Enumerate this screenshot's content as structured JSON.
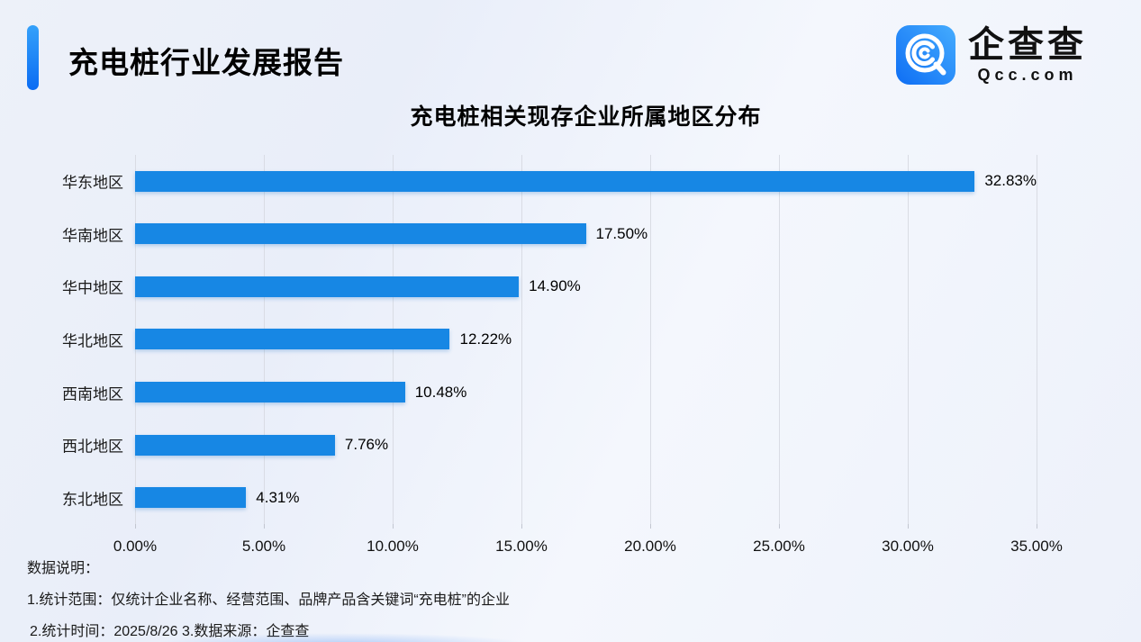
{
  "header": {
    "title": "充电桩行业发展报告"
  },
  "logo": {
    "icon": "qcc-magnifier-icon",
    "name_cn": "企查查",
    "name_en": "Qcc.com"
  },
  "chart_data": {
    "type": "bar",
    "orientation": "horizontal",
    "title": "充电桩相关现存企业所属地区分布",
    "categories": [
      "华东地区",
      "华南地区",
      "华中地区",
      "华北地区",
      "西南地区",
      "西北地区",
      "东北地区"
    ],
    "values": [
      32.83,
      17.5,
      14.9,
      12.22,
      10.48,
      7.76,
      4.31
    ],
    "value_labels": [
      "32.83%",
      "17.50%",
      "14.90%",
      "12.22%",
      "10.48%",
      "7.76%",
      "4.31%"
    ],
    "x_ticks": [
      0,
      5,
      10,
      15,
      20,
      25,
      30,
      35
    ],
    "x_tick_labels": [
      "0.00%",
      "5.00%",
      "10.00%",
      "15.00%",
      "20.00%",
      "25.00%",
      "30.00%",
      "35.00%"
    ],
    "xlim": [
      0,
      35
    ],
    "grid": true,
    "legend": null,
    "bar_color": "#1787E4"
  },
  "notes": {
    "heading": "数据说明：",
    "line1": "1.统计范围：仅统计企业名称、经营范围、品牌产品含关键词“充电桩”的企业",
    "line2": "2.统计时间：2025/8/26  3.数据来源：企查查"
  },
  "colors": {
    "bar": "#1787E4",
    "accent_top": "#34A1FA",
    "accent_bottom": "#0B6CF3",
    "gridline": "#D9DCE4",
    "background": "#EDF1F9"
  }
}
